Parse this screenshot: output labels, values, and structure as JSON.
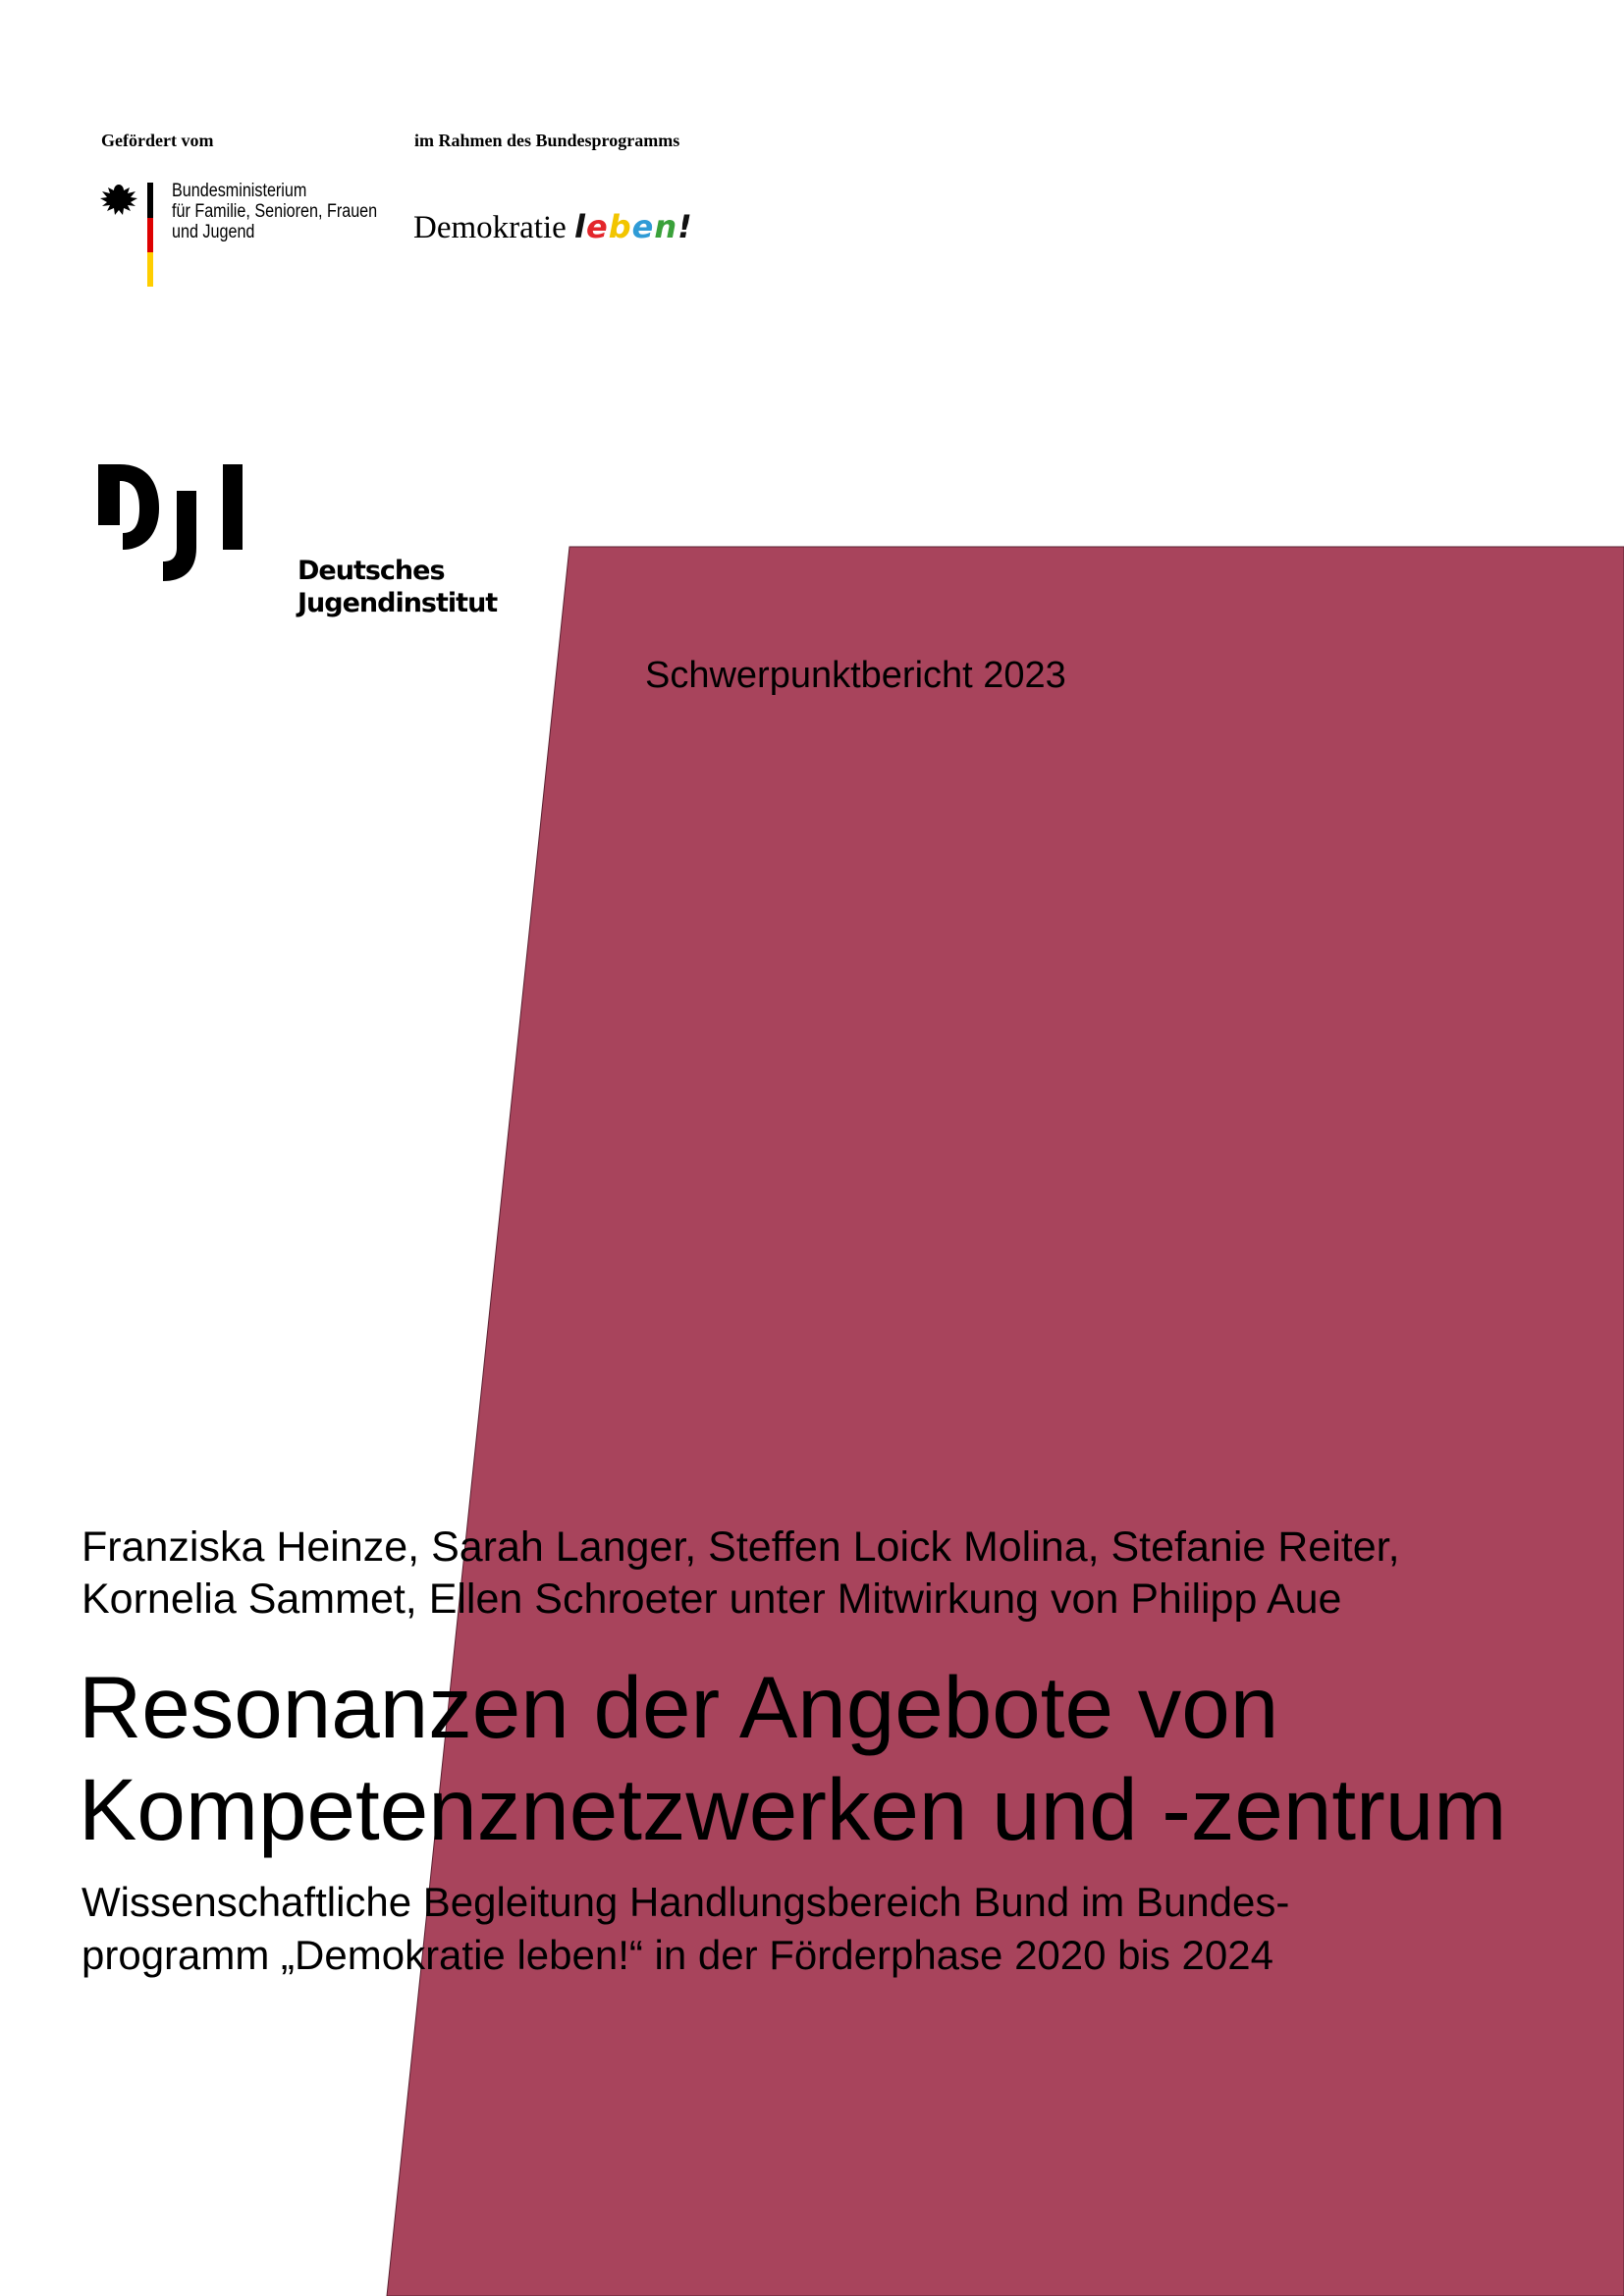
{
  "colors": {
    "accent_shape": "#a8445c",
    "flag_black": "#000000",
    "flag_red": "#dd0000",
    "flag_gold": "#ffce00",
    "leben_l": "#111111",
    "leben_e1": "#e3262b",
    "leben_b": "#f2c500",
    "leben_e2": "#2f9bd6",
    "leben_n": "#3aa13a"
  },
  "funding": {
    "funded_by_label": "Gefördert vom",
    "programme_label": "im Rahmen des Bundesprogramms",
    "ministry_lines": [
      "Bundesministerium",
      "für Familie, Senioren, Frauen",
      "und Jugend"
    ],
    "programme_logo_text": "Demokratie",
    "programme_logo_script": "leben!"
  },
  "institute": {
    "logo_letters": "DJI",
    "name_lines": [
      "Deutsches",
      "Jugendinstitut"
    ]
  },
  "report_type": "Schwerpunktbericht 2023",
  "authors_lines": [
    "Franziska Heinze, Sarah Langer, Steffen Loick Molina, Stefanie Reiter,",
    "Kornelia Sammet, Ellen Schroeter unter Mitwirkung von Philipp Aue"
  ],
  "title_lines": [
    "Resonanzen der Angebote von",
    "Kompetenznetzwerken und -zentrum"
  ],
  "subtitle_lines": [
    "Wissenschaftliche Begleitung Handlungsbereich Bund im Bundes-",
    "programm „Demokratie leben!“ in der Förderphase 2020 bis 2024"
  ]
}
